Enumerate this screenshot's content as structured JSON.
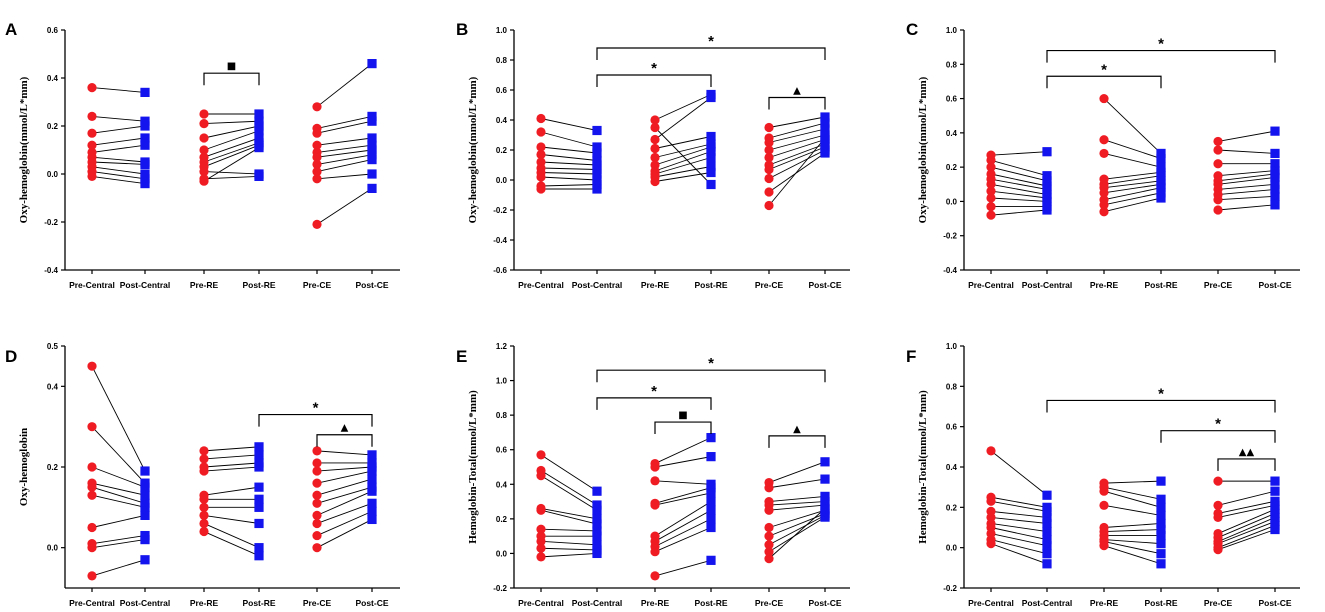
{
  "colors": {
    "pre": "#ef1c24",
    "post": "#1414ee",
    "line": "#000000"
  },
  "chart_data": [
    {
      "type": "scatter",
      "panel": "A",
      "ylabel": "Oxy-hemoglobin(mmol/L*mm)",
      "ylim": [
        -0.4,
        0.6
      ],
      "yticks": [
        -0.4,
        -0.2,
        0.0,
        0.2,
        0.4,
        0.6
      ],
      "tick_labels": [
        "-0.4",
        "-0.2",
        "0.0",
        "0.2",
        "0.4",
        "0.6"
      ],
      "categories": [
        "Pre-Central",
        "Post-Central",
        "Pre-RE",
        "Post-RE",
        "Pre-CE",
        "Post-CE"
      ],
      "pairs": [
        {
          "pre": [
            0.36,
            0.24,
            0.17,
            0.12,
            0.09,
            0.07,
            0.05,
            0.03,
            0.01,
            -0.01
          ],
          "post": [
            0.34,
            0.22,
            0.2,
            0.15,
            0.12,
            0.05,
            0.04,
            0.0,
            -0.02,
            -0.04
          ]
        },
        {
          "pre": [
            0.25,
            0.21,
            0.15,
            0.1,
            0.07,
            0.05,
            0.03,
            0.01,
            -0.02,
            -0.03
          ],
          "post": [
            0.25,
            0.22,
            0.2,
            0.18,
            0.15,
            0.13,
            0.12,
            0.0,
            -0.01,
            0.11
          ]
        },
        {
          "pre": [
            0.28,
            0.19,
            0.17,
            0.12,
            0.09,
            0.07,
            0.04,
            0.01,
            -0.02,
            -0.21
          ],
          "post": [
            0.46,
            0.24,
            0.22,
            0.15,
            0.12,
            0.1,
            0.08,
            0.06,
            0.0,
            -0.06
          ]
        }
      ],
      "brackets": [
        {
          "from": 2,
          "to": 3,
          "y": 0.42,
          "label": "■"
        }
      ]
    },
    {
      "type": "scatter",
      "panel": "B",
      "ylabel": "Oxy-hemoglobin(mmol/L*mm)",
      "ylim": [
        -0.6,
        1.0
      ],
      "yticks": [
        -0.6,
        -0.4,
        -0.2,
        0.0,
        0.2,
        0.4,
        0.6,
        0.8,
        1.0
      ],
      "tick_labels": [
        "-0.6",
        "-0.4",
        "-0.2",
        "0.0",
        "0.2",
        "0.4",
        "0.6",
        "0.8",
        "1.0"
      ],
      "categories": [
        "Pre-Central",
        "Post-Central",
        "Pre-RE",
        "Post-RE",
        "Pre-CE",
        "Post-CE"
      ],
      "pairs": [
        {
          "pre": [
            0.41,
            0.32,
            0.22,
            0.17,
            0.12,
            0.08,
            0.05,
            0.02,
            -0.04,
            -0.06
          ],
          "post": [
            0.33,
            0.22,
            0.18,
            0.13,
            0.1,
            0.07,
            0.04,
            0.0,
            -0.03,
            -0.06
          ]
        },
        {
          "pre": [
            0.4,
            0.27,
            0.21,
            0.15,
            0.1,
            0.06,
            0.04,
            0.02,
            -0.01,
            0.35
          ],
          "post": [
            0.57,
            0.55,
            0.29,
            0.24,
            0.22,
            0.19,
            0.15,
            0.09,
            0.05,
            -0.03
          ]
        },
        {
          "pre": [
            0.35,
            0.28,
            0.25,
            0.2,
            0.15,
            0.1,
            0.07,
            0.01,
            -0.08,
            -0.17
          ],
          "post": [
            0.42,
            0.38,
            0.34,
            0.3,
            0.27,
            0.24,
            0.22,
            0.2,
            0.18,
            0.28
          ]
        }
      ],
      "brackets": [
        {
          "from": 4,
          "to": 5,
          "y": 0.55,
          "label": "▲"
        },
        {
          "from": 1,
          "to": 3,
          "y": 0.7,
          "label": "*"
        },
        {
          "from": 1,
          "to": 5,
          "y": 0.88,
          "label": "*"
        }
      ]
    },
    {
      "type": "scatter",
      "panel": "C",
      "ylabel": "Oxy-hemoglobin(mmol/L*mm)",
      "ylim": [
        -0.4,
        1.0
      ],
      "yticks": [
        -0.4,
        -0.2,
        0.0,
        0.2,
        0.4,
        0.6,
        0.8,
        1.0
      ],
      "tick_labels": [
        "-0.4",
        "-0.2",
        "0.0",
        "0.2",
        "0.4",
        "0.6",
        "0.8",
        "1.0"
      ],
      "categories": [
        "Pre-Central",
        "Post-Central",
        "Pre-RE",
        "Post-RE",
        "Pre-CE",
        "Post-CE"
      ],
      "pairs": [
        {
          "pre": [
            0.27,
            0.24,
            0.2,
            0.16,
            0.13,
            0.1,
            0.06,
            0.02,
            -0.03,
            -0.08
          ],
          "post": [
            0.29,
            0.15,
            0.12,
            0.09,
            0.07,
            0.04,
            0.02,
            0.0,
            -0.03,
            -0.05
          ]
        },
        {
          "pre": [
            0.6,
            0.36,
            0.28,
            0.13,
            0.1,
            0.08,
            0.05,
            0.01,
            -0.02,
            -0.06
          ],
          "post": [
            0.28,
            0.25,
            0.2,
            0.17,
            0.15,
            0.12,
            0.1,
            0.08,
            0.05,
            0.02
          ]
        },
        {
          "pre": [
            0.35,
            0.3,
            0.22,
            0.15,
            0.12,
            0.1,
            0.07,
            0.04,
            0.01,
            -0.05
          ],
          "post": [
            0.41,
            0.28,
            0.22,
            0.18,
            0.16,
            0.14,
            0.1,
            0.07,
            0.03,
            -0.02
          ]
        }
      ],
      "brackets": [
        {
          "from": 1,
          "to": 3,
          "y": 0.73,
          "label": "*"
        },
        {
          "from": 1,
          "to": 5,
          "y": 0.88,
          "label": "*"
        }
      ]
    },
    {
      "type": "scatter",
      "panel": "D",
      "ylabel": "Oxy-hemoglobin",
      "ylim": [
        -0.1,
        0.5
      ],
      "yticks": [
        0.0,
        0.2,
        0.4,
        0.5
      ],
      "tick_labels": [
        "0.0",
        "0.2",
        "0.4",
        "0.5"
      ],
      "categories": [
        "Pre-Central",
        "Post-Central",
        "Pre-RE",
        "Post-RE",
        "Pre-CE",
        "Post-CE"
      ],
      "pairs": [
        {
          "pre": [
            0.45,
            0.3,
            0.2,
            0.16,
            0.15,
            0.13,
            0.05,
            0.01,
            0.0,
            -0.07
          ],
          "post": [
            0.19,
            0.16,
            0.15,
            0.13,
            0.11,
            0.1,
            0.08,
            0.03,
            0.02,
            -0.03
          ]
        },
        {
          "pre": [
            0.24,
            0.22,
            0.2,
            0.19,
            0.13,
            0.12,
            0.1,
            0.08,
            0.06,
            0.04
          ],
          "post": [
            0.25,
            0.23,
            0.21,
            0.2,
            0.15,
            0.12,
            0.1,
            0.06,
            0.0,
            -0.02
          ]
        },
        {
          "pre": [
            0.24,
            0.21,
            0.19,
            0.16,
            0.13,
            0.11,
            0.08,
            0.06,
            0.03,
            0.0
          ],
          "post": [
            0.23,
            0.21,
            0.2,
            0.19,
            0.17,
            0.15,
            0.14,
            0.11,
            0.09,
            0.07
          ]
        }
      ],
      "brackets": [
        {
          "from": 4,
          "to": 5,
          "y": 0.28,
          "label": "▲"
        },
        {
          "from": 3,
          "to": 5,
          "y": 0.33,
          "label": "*"
        }
      ]
    },
    {
      "type": "scatter",
      "panel": "E",
      "ylabel": "Hemoglobin-Total(mmol/L*mm)",
      "ylim": [
        -0.2,
        1.2
      ],
      "yticks": [
        -0.2,
        0.0,
        0.2,
        0.4,
        0.6,
        0.8,
        1.0,
        1.2
      ],
      "tick_labels": [
        "-0.2",
        "0.0",
        "0.2",
        "0.4",
        "0.6",
        "0.8",
        "1.0",
        "1.2"
      ],
      "categories": [
        "Pre-Central",
        "Post-Central",
        "Pre-RE",
        "Post-RE",
        "Pre-CE",
        "Post-CE"
      ],
      "pairs": [
        {
          "pre": [
            0.57,
            0.48,
            0.45,
            0.26,
            0.25,
            0.14,
            0.1,
            0.07,
            0.03,
            -0.02
          ],
          "post": [
            0.36,
            0.28,
            0.25,
            0.2,
            0.17,
            0.13,
            0.1,
            0.05,
            0.02,
            0.0
          ]
        },
        {
          "pre": [
            0.52,
            0.5,
            0.42,
            0.29,
            0.28,
            0.1,
            0.07,
            0.04,
            0.01,
            -0.13
          ],
          "post": [
            0.67,
            0.56,
            0.4,
            0.38,
            0.35,
            0.3,
            0.25,
            0.2,
            0.15,
            -0.04
          ]
        },
        {
          "pre": [
            0.41,
            0.38,
            0.3,
            0.28,
            0.25,
            0.15,
            0.1,
            0.05,
            0.01,
            -0.03
          ],
          "post": [
            0.53,
            0.43,
            0.33,
            0.3,
            0.28,
            0.25,
            0.23,
            0.22,
            0.21,
            0.26
          ]
        }
      ],
      "brackets": [
        {
          "from": 4,
          "to": 5,
          "y": 0.68,
          "label": "▲"
        },
        {
          "from": 2,
          "to": 3,
          "y": 0.76,
          "label": "■"
        },
        {
          "from": 1,
          "to": 3,
          "y": 0.9,
          "label": "*"
        },
        {
          "from": 1,
          "to": 5,
          "y": 1.06,
          "label": "*"
        }
      ]
    },
    {
      "type": "scatter",
      "panel": "F",
      "ylabel": "Hemoglobin-Total(mmol/L*mm)",
      "ylim": [
        -0.2,
        1.0
      ],
      "yticks": [
        -0.2,
        0.0,
        0.2,
        0.4,
        0.6,
        0.8,
        1.0
      ],
      "tick_labels": [
        "-0.2",
        "0.0",
        "0.2",
        "0.4",
        "0.6",
        "0.8",
        "1.0"
      ],
      "categories": [
        "Pre-Central",
        "Post-Central",
        "Pre-RE",
        "Post-RE",
        "Pre-CE",
        "Post-CE"
      ],
      "pairs": [
        {
          "pre": [
            0.48,
            0.25,
            0.23,
            0.18,
            0.15,
            0.12,
            0.1,
            0.07,
            0.04,
            0.02
          ],
          "post": [
            0.26,
            0.2,
            0.18,
            0.15,
            0.12,
            0.08,
            0.04,
            0.01,
            -0.03,
            -0.08
          ]
        },
        {
          "pre": [
            0.32,
            0.3,
            0.28,
            0.21,
            0.1,
            0.08,
            0.06,
            0.04,
            0.03,
            0.01
          ],
          "post": [
            0.33,
            0.24,
            0.2,
            0.16,
            0.12,
            0.09,
            0.06,
            0.02,
            -0.03,
            -0.08
          ]
        },
        {
          "pre": [
            0.33,
            0.21,
            0.17,
            0.15,
            0.07,
            0.05,
            0.03,
            0.02,
            0.0,
            -0.01
          ],
          "post": [
            0.33,
            0.28,
            0.23,
            0.21,
            0.19,
            0.17,
            0.15,
            0.13,
            0.11,
            0.09
          ]
        }
      ],
      "brackets": [
        {
          "from": 4,
          "to": 5,
          "y": 0.44,
          "label": "▲▲"
        },
        {
          "from": 3,
          "to": 5,
          "y": 0.58,
          "label": "*"
        },
        {
          "from": 1,
          "to": 5,
          "y": 0.73,
          "label": "*"
        }
      ]
    }
  ]
}
